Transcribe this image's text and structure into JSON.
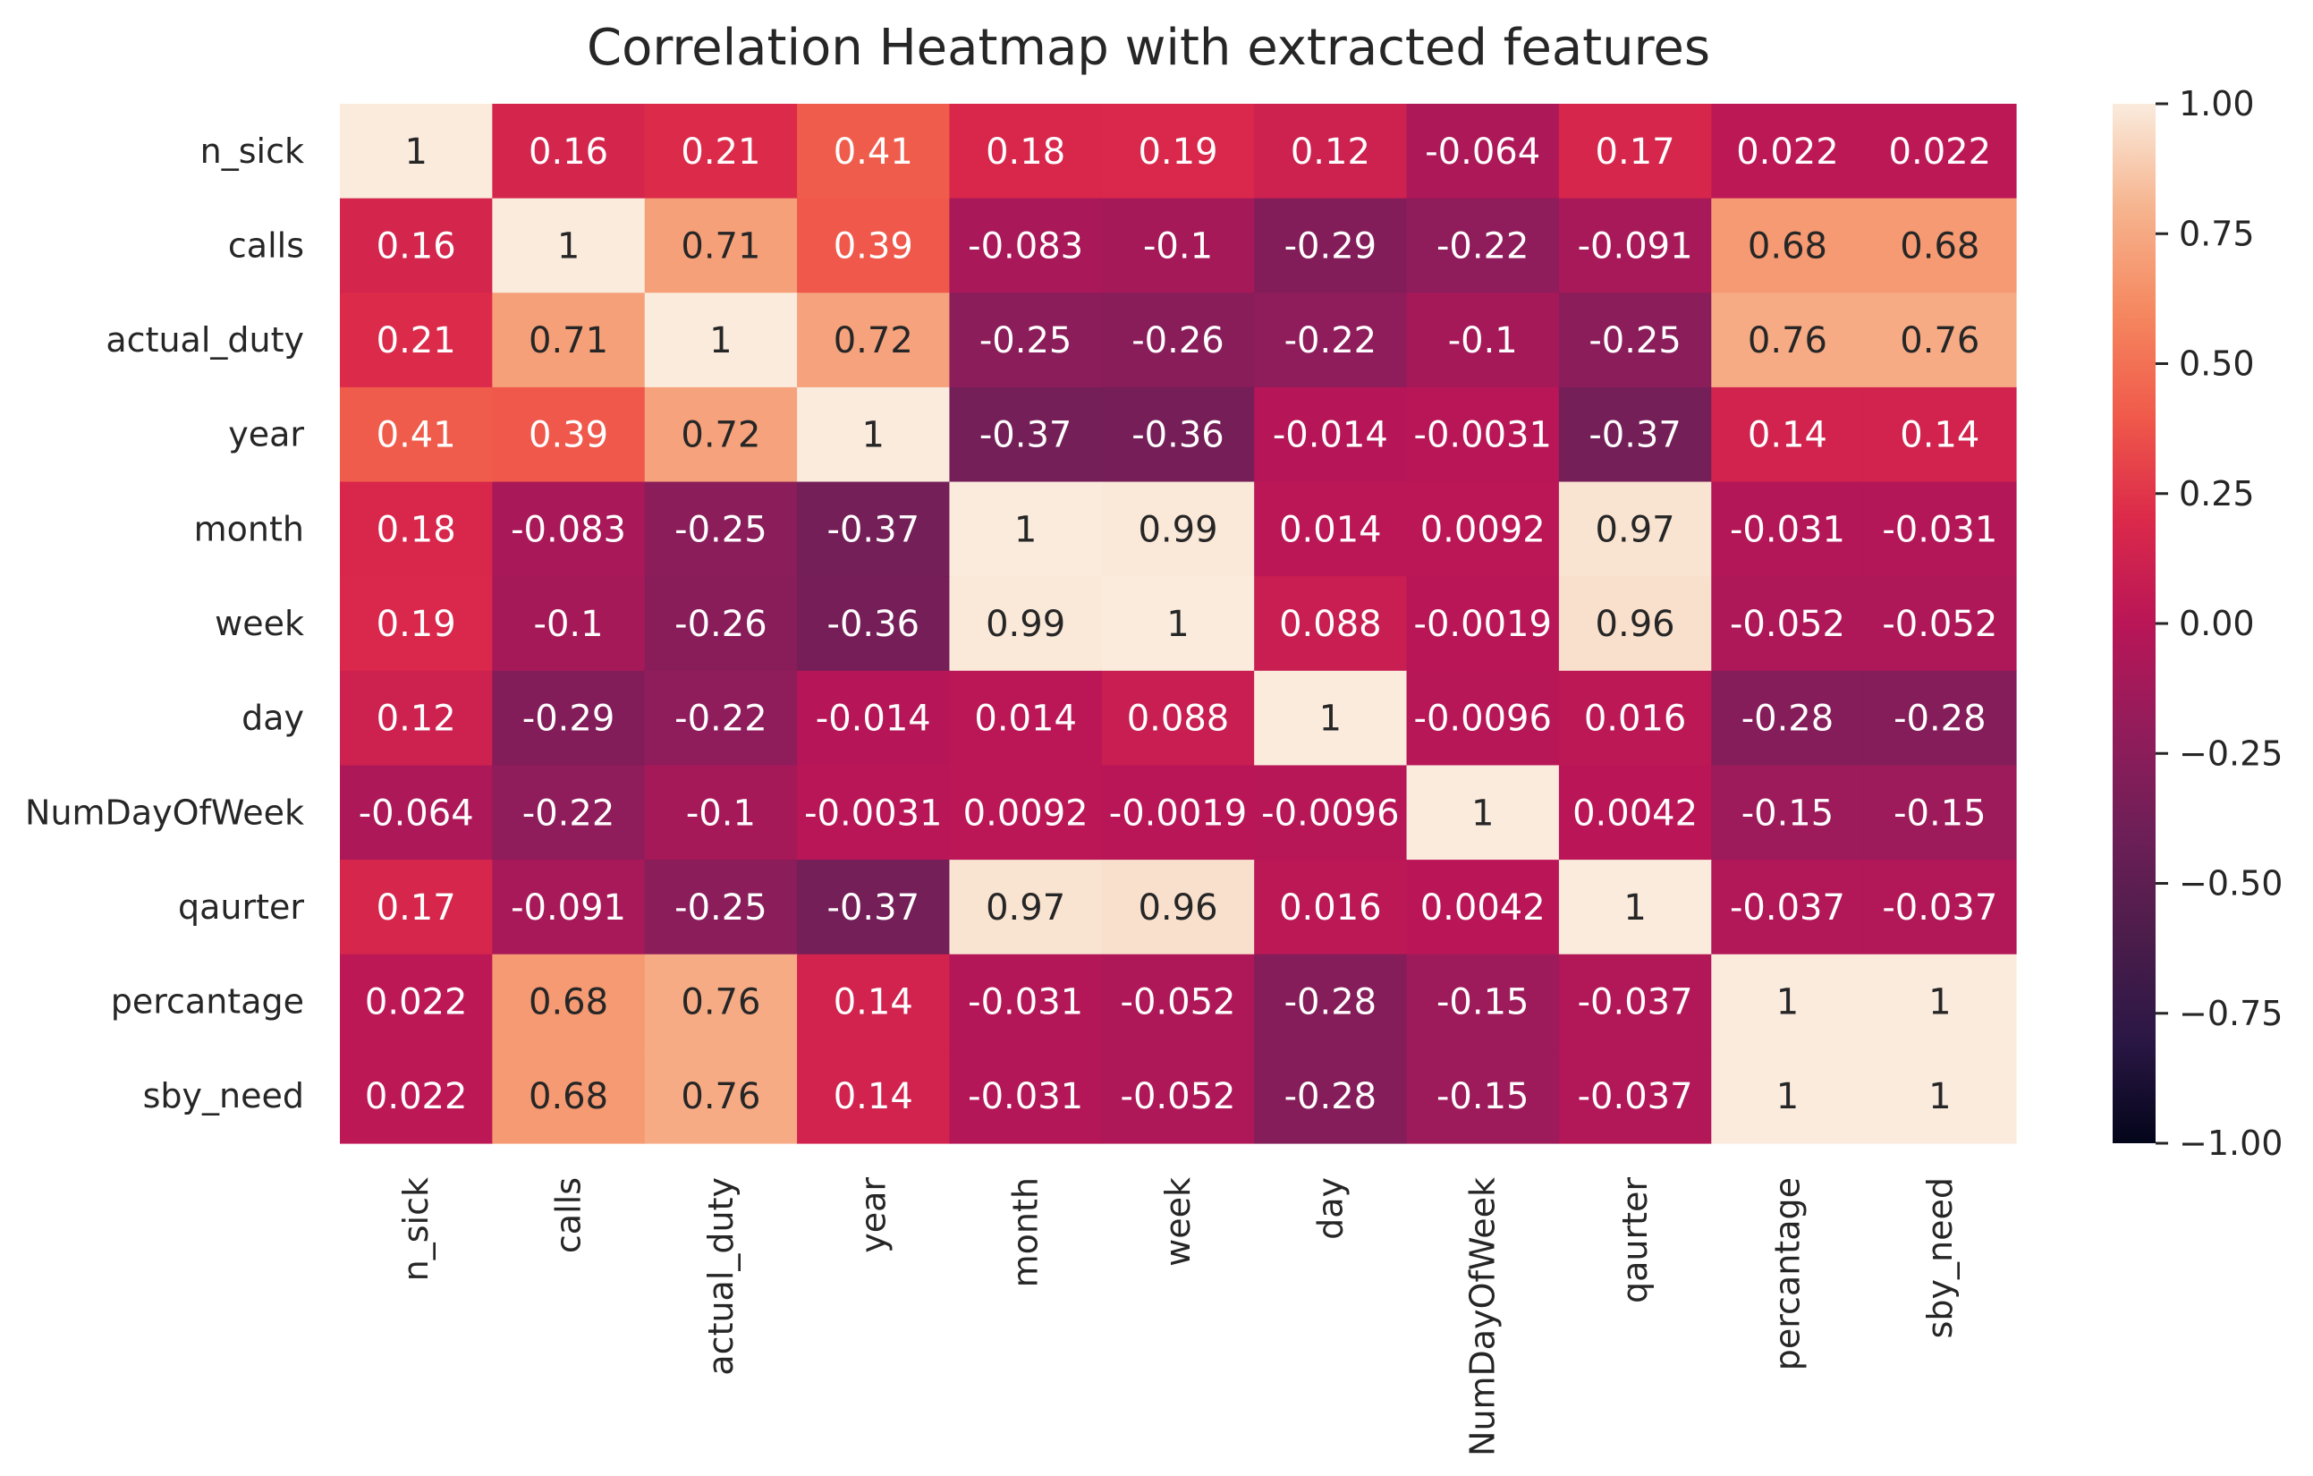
{
  "chart_data": {
    "type": "heatmap",
    "title": "Correlation Heatmap with extracted features",
    "rows": [
      "n_sick",
      "calls",
      "actual_duty",
      "year",
      "month",
      "week",
      "day",
      "NumDayOfWeek",
      "qaurter",
      "percantage",
      "sby_need"
    ],
    "columns": [
      "n_sick",
      "calls",
      "actual_duty",
      "year",
      "month",
      "week",
      "day",
      "NumDayOfWeek",
      "qaurter",
      "percantage",
      "sby_need"
    ],
    "values": [
      [
        1,
        0.16,
        0.21,
        0.41,
        0.18,
        0.19,
        0.12,
        -0.064,
        0.17,
        0.022,
        0.022
      ],
      [
        0.16,
        1,
        0.71,
        0.39,
        -0.083,
        -0.1,
        -0.29,
        -0.22,
        -0.091,
        0.68,
        0.68
      ],
      [
        0.21,
        0.71,
        1,
        0.72,
        -0.25,
        -0.26,
        -0.22,
        -0.1,
        -0.25,
        0.76,
        0.76
      ],
      [
        0.41,
        0.39,
        0.72,
        1,
        -0.37,
        -0.36,
        -0.014,
        -0.0031,
        -0.37,
        0.14,
        0.14
      ],
      [
        0.18,
        -0.083,
        -0.25,
        -0.37,
        1,
        0.99,
        0.014,
        0.0092,
        0.97,
        -0.031,
        -0.031
      ],
      [
        0.19,
        -0.1,
        -0.26,
        -0.36,
        0.99,
        1,
        0.088,
        -0.0019,
        0.96,
        -0.052,
        -0.052
      ],
      [
        0.12,
        -0.29,
        -0.22,
        -0.014,
        0.014,
        0.088,
        1,
        -0.0096,
        0.016,
        -0.28,
        -0.28
      ],
      [
        -0.064,
        -0.22,
        -0.1,
        -0.0031,
        0.0092,
        -0.0019,
        -0.0096,
        1,
        0.0042,
        -0.15,
        -0.15
      ],
      [
        0.17,
        -0.091,
        -0.25,
        -0.37,
        0.97,
        0.96,
        0.016,
        0.0042,
        1,
        -0.037,
        -0.037
      ],
      [
        0.022,
        0.68,
        0.76,
        0.14,
        -0.031,
        -0.052,
        -0.28,
        -0.15,
        -0.037,
        1,
        1
      ],
      [
        0.022,
        0.68,
        0.76,
        0.14,
        -0.031,
        -0.052,
        -0.28,
        -0.15,
        -0.037,
        1,
        1
      ]
    ],
    "labels": [
      [
        "1",
        "0.16",
        "0.21",
        "0.41",
        "0.18",
        "0.19",
        "0.12",
        "-0.064",
        "0.17",
        "0.022",
        "0.022"
      ],
      [
        "0.16",
        "1",
        "0.71",
        "0.39",
        "-0.083",
        "-0.1",
        "-0.29",
        "-0.22",
        "-0.091",
        "0.68",
        "0.68"
      ],
      [
        "0.21",
        "0.71",
        "1",
        "0.72",
        "-0.25",
        "-0.26",
        "-0.22",
        "-0.1",
        "-0.25",
        "0.76",
        "0.76"
      ],
      [
        "0.41",
        "0.39",
        "0.72",
        "1",
        "-0.37",
        "-0.36",
        "-0.014",
        "-0.0031",
        "-0.37",
        "0.14",
        "0.14"
      ],
      [
        "0.18",
        "-0.083",
        "-0.25",
        "-0.37",
        "1",
        "0.99",
        "0.014",
        "0.0092",
        "0.97",
        "-0.031",
        "-0.031"
      ],
      [
        "0.19",
        "-0.1",
        "-0.26",
        "-0.36",
        "0.99",
        "1",
        "0.088",
        "-0.0019",
        "0.96",
        "-0.052",
        "-0.052"
      ],
      [
        "0.12",
        "-0.29",
        "-0.22",
        "-0.014",
        "0.014",
        "0.088",
        "1",
        "-0.0096",
        "0.016",
        "-0.28",
        "-0.28"
      ],
      [
        "-0.064",
        "-0.22",
        "-0.1",
        "-0.0031",
        "0.0092",
        "-0.0019",
        "-0.0096",
        "1",
        "0.0042",
        "-0.15",
        "-0.15"
      ],
      [
        "0.17",
        "-0.091",
        "-0.25",
        "-0.37",
        "0.97",
        "0.96",
        "0.016",
        "0.0042",
        "1",
        "-0.037",
        "-0.037"
      ],
      [
        "0.022",
        "0.68",
        "0.76",
        "0.14",
        "-0.031",
        "-0.052",
        "-0.28",
        "-0.15",
        "-0.037",
        "1",
        "1"
      ],
      [
        "0.022",
        "0.68",
        "0.76",
        "0.14",
        "-0.031",
        "-0.052",
        "-0.28",
        "-0.15",
        "-0.037",
        "1",
        "1"
      ]
    ],
    "vmin": -1,
    "vmax": 1,
    "colorbar": {
      "ticks": [
        1.0,
        0.75,
        0.5,
        0.25,
        0.0,
        -0.25,
        -0.5,
        -0.75,
        -1.0
      ],
      "tick_labels": [
        "1.00",
        "0.75",
        "0.50",
        "0.25",
        "0.00",
        "−0.25",
        "−0.50",
        "−0.75",
        "−1.00"
      ],
      "placement": "right"
    },
    "colormap": "rocket",
    "colormap_stops": [
      "#03051a",
      "#2b1745",
      "#4c1d4b",
      "#6e1f57",
      "#931c5b",
      "#b91657",
      "#db294a",
      "#f05a4a",
      "#f58860",
      "#f6b48e",
      "#faebdd"
    ],
    "grid": false,
    "text_color_dark": "#262626",
    "text_color_light": "#ffffff"
  }
}
